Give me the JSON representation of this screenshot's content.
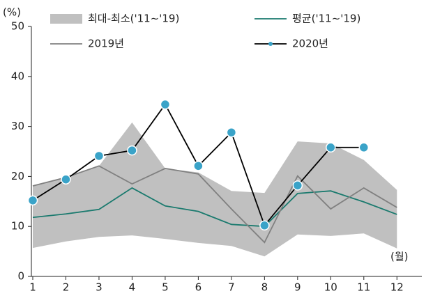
{
  "chart_data": {
    "type": "line",
    "y_unit": "(%)",
    "x_unit": "(월)",
    "x": [
      1,
      2,
      3,
      4,
      5,
      6,
      7,
      8,
      9,
      10,
      11,
      12
    ],
    "xlim": [
      1,
      12.5
    ],
    "xticks": [
      1,
      2,
      3,
      4,
      5,
      6,
      7,
      8,
      9,
      10,
      11,
      12
    ],
    "ylim": [
      0,
      50
    ],
    "yticks": [
      0,
      10,
      20,
      30,
      40,
      50
    ],
    "series": [
      {
        "name": "최대-최소('11~'19)",
        "color": "#c0c0c0",
        "kind": "band",
        "upper": [
          18.1,
          19.8,
          22.1,
          30.8,
          21.6,
          20.8,
          17.1,
          16.7,
          27.0,
          26.6,
          23.3,
          17.3
        ],
        "lower": [
          5.7,
          7.0,
          7.9,
          8.2,
          7.5,
          6.7,
          6.1,
          4.0,
          8.4,
          8.1,
          8.6,
          5.6
        ]
      },
      {
        "name": "평균('11~'19)",
        "color": "#1a7a6e",
        "kind": "line",
        "values": [
          11.8,
          12.5,
          13.4,
          17.7,
          14.1,
          13.0,
          10.4,
          10.0,
          16.6,
          17.1,
          14.9,
          12.4
        ]
      },
      {
        "name": "2019년",
        "color": "#808080",
        "kind": "line",
        "values": [
          18.1,
          19.8,
          22.1,
          18.5,
          21.6,
          20.5,
          13.5,
          6.8,
          20.1,
          13.5,
          17.7,
          13.8
        ]
      },
      {
        "name": "2020년",
        "color": "#000000",
        "marker_color": "#3aa3c8",
        "kind": "line",
        "values": [
          15.2,
          19.4,
          24.1,
          25.2,
          34.4,
          22.1,
          28.8,
          10.2,
          18.2,
          25.8,
          25.8,
          null
        ]
      }
    ]
  }
}
